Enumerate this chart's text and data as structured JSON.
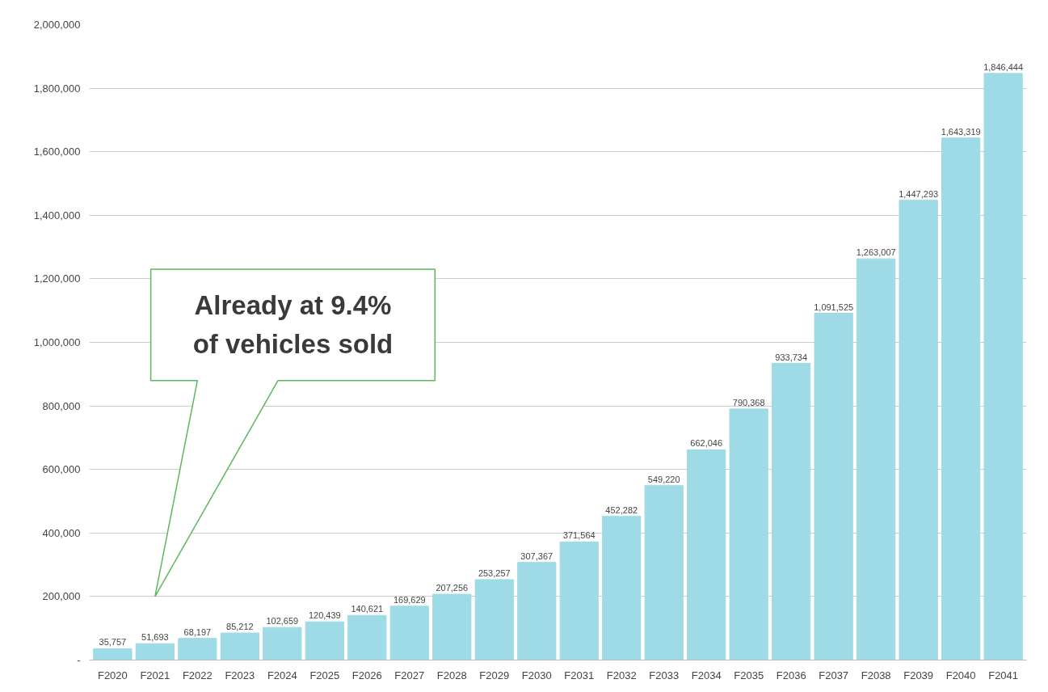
{
  "chart_data": {
    "type": "bar",
    "categories": [
      "F2020",
      "F2021",
      "F2022",
      "F2023",
      "F2024",
      "F2025",
      "F2026",
      "F2027",
      "F2028",
      "F2029",
      "F2030",
      "F2031",
      "F2032",
      "F2033",
      "F2034",
      "F2035",
      "F2036",
      "F2037",
      "F2038",
      "F2039",
      "F2040",
      "F2041"
    ],
    "values": [
      35757,
      51693,
      68197,
      85212,
      102659,
      120439,
      140621,
      169629,
      207256,
      253257,
      307367,
      371564,
      452282,
      549220,
      662046,
      790368,
      933734,
      1091525,
      1263007,
      1447293,
      1643319,
      1846444
    ],
    "value_labels": [
      "35,757",
      "51,693",
      "68,197",
      "85,212",
      "102,659",
      "120,439",
      "140,621",
      "169,629",
      "207,256",
      "253,257",
      "307,367",
      "371,564",
      "452,282",
      "549,220",
      "662,046",
      "790,368",
      "933,734",
      "1,091,525",
      "1,263,007",
      "1,447,293",
      "1,643,319",
      "1,846,444"
    ],
    "color": "#9edbe6",
    "ylim": [
      0,
      2000000
    ],
    "yticks": [
      {
        "value": 0,
        "label": "-"
      },
      {
        "value": 200000,
        "label": "200,000"
      },
      {
        "value": 400000,
        "label": "400,000"
      },
      {
        "value": 600000,
        "label": "600,000"
      },
      {
        "value": 800000,
        "label": "800,000"
      },
      {
        "value": 1000000,
        "label": "1,000,000"
      },
      {
        "value": 1200000,
        "label": "1,200,000"
      },
      {
        "value": 1400000,
        "label": "1,400,000"
      },
      {
        "value": 1600000,
        "label": "1,600,000"
      },
      {
        "value": 1800000,
        "label": "1,800,000"
      },
      {
        "value": 2000000,
        "label": "2,000,000"
      }
    ],
    "grid": "y",
    "annotations": [
      "Already at 9.4%\nof vehicles sold"
    ]
  }
}
